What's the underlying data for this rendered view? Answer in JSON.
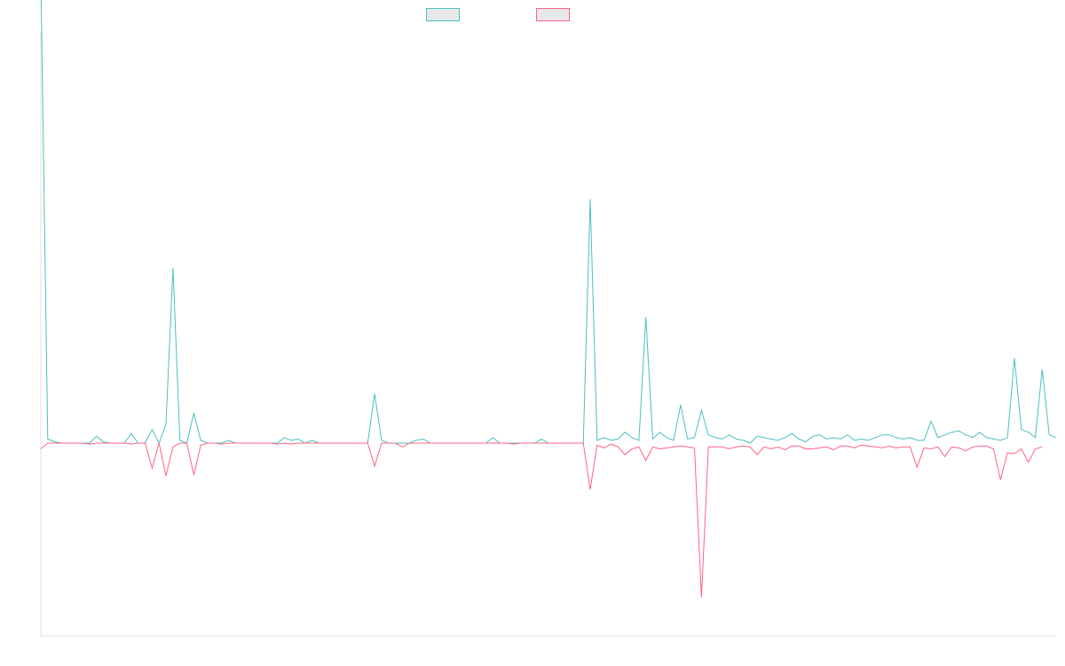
{
  "chart_data": {
    "type": "line",
    "title": "",
    "xlabel": "",
    "ylabel": "",
    "ylim": [
      -100,
      150
    ],
    "grid": false,
    "legend_placement": "top-center",
    "series": [
      {
        "name": "",
        "color": "#4bc0c0",
        "values": [
          170,
          1.5,
          0.5,
          0,
          0,
          0,
          0,
          0,
          2.5,
          0.5,
          0,
          0,
          0,
          3.5,
          0,
          0,
          5,
          0,
          7,
          64,
          1,
          0,
          11,
          1,
          0,
          0,
          0,
          1,
          0,
          0,
          0,
          0,
          0,
          0,
          0,
          2,
          1,
          1.5,
          0,
          1,
          0,
          0,
          0,
          0,
          0,
          0,
          0,
          0,
          18,
          1,
          0,
          0,
          0,
          0,
          1,
          1.5,
          0,
          0,
          0,
          0,
          0,
          0,
          0,
          0,
          0,
          2,
          0,
          0,
          0,
          0,
          0,
          0,
          1.5,
          0,
          0,
          0,
          0,
          0,
          0,
          89,
          1,
          2,
          1,
          1.5,
          4,
          2,
          1,
          46,
          1.5,
          4,
          2,
          1,
          14,
          1.5,
          2,
          12,
          3,
          2,
          1.5,
          3,
          1.5,
          1,
          0,
          2.5,
          2,
          1.5,
          1,
          2,
          3.5,
          1.5,
          0.5,
          2.5,
          3,
          1.5,
          2,
          1.5,
          3,
          1,
          1.5,
          1,
          2,
          3,
          3,
          2,
          1.5,
          2,
          1,
          1,
          8,
          2,
          3,
          4,
          4.5,
          3,
          2,
          4,
          2,
          1.5,
          1,
          2,
          31,
          5,
          4,
          2,
          27,
          3,
          2
        ]
      },
      {
        "name": "",
        "color": "#ff6384",
        "values": [
          -3,
          0,
          0,
          0,
          0,
          0,
          0,
          -0.5,
          0,
          0,
          0,
          0,
          0,
          -0.5,
          0,
          0,
          -13,
          0,
          -17,
          -2,
          0,
          0,
          -16.5,
          -1,
          0,
          0,
          -0.5,
          0,
          0,
          0,
          0,
          0,
          0,
          0,
          -0.5,
          0,
          -0.5,
          0,
          0,
          0,
          0,
          0,
          0,
          0,
          0,
          0,
          0,
          0,
          -12,
          0,
          0,
          0,
          -2,
          0,
          0,
          0,
          0,
          0,
          0,
          0,
          0,
          0,
          0,
          0,
          0,
          0,
          0,
          0,
          -0.5,
          0,
          0,
          0,
          0,
          0,
          0,
          0,
          0,
          0,
          0,
          -24,
          -1,
          -2.5,
          -0.5,
          -2,
          -6,
          -3,
          -2,
          -9,
          -2,
          -3,
          -2.5,
          -2,
          -1.5,
          -2,
          -2.5,
          -80,
          -2,
          -2,
          -2,
          -3,
          -2,
          -1.5,
          -2,
          -6,
          -2,
          -3,
          -2,
          -3.5,
          -1.5,
          -1.5,
          -3,
          -3,
          -2.5,
          -2,
          -3.5,
          -1.5,
          -1.5,
          -2.5,
          -1,
          -1.5,
          -2,
          -2.5,
          -1.5,
          -2.5,
          -2,
          -2,
          -12.5,
          -2.5,
          -3,
          -2,
          -7,
          -2,
          -2.5,
          -4,
          -2,
          -1.5,
          -1.5,
          -3,
          -19,
          -5,
          -5.5,
          -3,
          -10,
          -3,
          -2
        ]
      }
    ]
  }
}
